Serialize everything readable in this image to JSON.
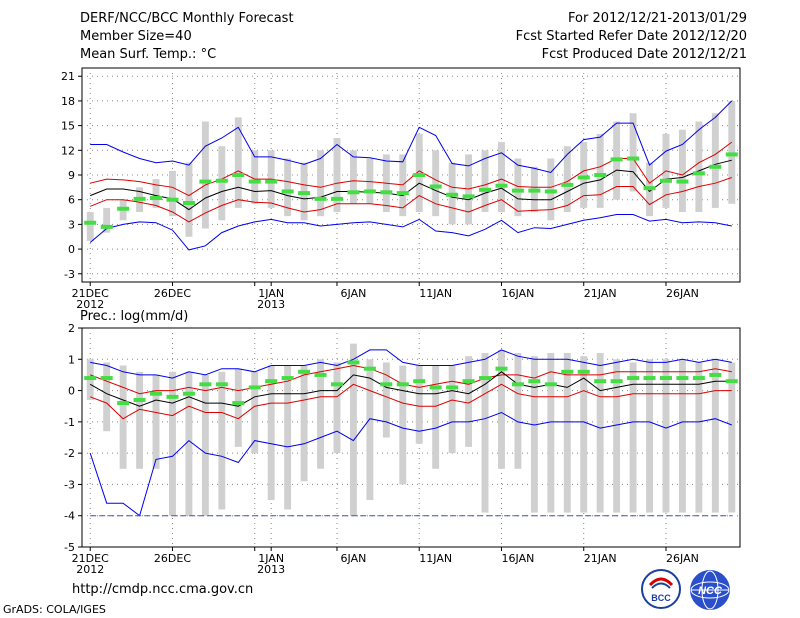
{
  "header": {
    "title": "DERF/NCC/BCC Monthly Forecast",
    "member_size": "Member Size=40",
    "variable": "Mean Surf. Temp.: °C",
    "period": "For 2012/12/21-2013/01/29",
    "started": "Fcst Started Refer Date 2012/12/20",
    "produced": "Fcst Produced Date 2012/12/21"
  },
  "footer": {
    "url": "http://cmdp.ncc.cma.gov.cn",
    "grads": "GrADS: COLA/IGES",
    "logo_bcc": "BCC",
    "logo_ncc": "NCC"
  },
  "colors": {
    "max": "#0000ee",
    "min": "#0000ee",
    "upper": "#dd0000",
    "lower": "#dd0000",
    "mean": "#000000",
    "median": "#44dd44",
    "box": "#d0d0d0"
  },
  "chart_data": [
    {
      "name": "temperature",
      "type": "box-line",
      "title": "Mean Surf. Temp.: °C",
      "ylim": [
        -4,
        22
      ],
      "yticks": [
        -3,
        0,
        3,
        6,
        9,
        12,
        15,
        18,
        21
      ],
      "day_range": [
        -0.5,
        39.5
      ],
      "xtick_days": [
        0,
        5,
        10,
        11,
        15,
        20,
        25,
        30,
        35
      ],
      "xtick_labels": [
        {
          "day": 0,
          "text": "21DEC"
        },
        {
          "day": 0,
          "text": "2012",
          "row": 2
        },
        {
          "day": 5,
          "text": "26DEC"
        },
        {
          "day": 11,
          "text": "1JAN"
        },
        {
          "day": 11,
          "text": "2013",
          "row": 2
        },
        {
          "day": 16,
          "text": "6JAN"
        },
        {
          "day": 21,
          "text": "11JAN"
        },
        {
          "day": 26,
          "text": "16JAN"
        },
        {
          "day": 31,
          "text": "21JAN"
        },
        {
          "day": 36,
          "text": "26JAN"
        }
      ],
      "series": [
        {
          "name": "max",
          "values": [
            12.7,
            12.7,
            11.8,
            11.0,
            10.5,
            10.7,
            10.2,
            12.5,
            13.5,
            14.8,
            11.2,
            11.2,
            10.8,
            10.3,
            11.0,
            12.7,
            11.2,
            11.1,
            10.7,
            10.6,
            14.8,
            13.8,
            10.4,
            10.1,
            11.0,
            11.7,
            10.2,
            9.8,
            9.3,
            11.5,
            13.3,
            13.6,
            15.3,
            15.3,
            10.2,
            11.9,
            12.7,
            14.5,
            16.0,
            18.0
          ]
        },
        {
          "name": "upper",
          "values": [
            8.0,
            8.5,
            8.4,
            8.2,
            7.8,
            7.5,
            6.5,
            7.8,
            8.5,
            9.5,
            8.5,
            8.5,
            8.2,
            7.8,
            7.5,
            8.0,
            8.3,
            8.2,
            8.0,
            7.8,
            9.5,
            8.4,
            7.5,
            7.3,
            7.8,
            8.5,
            7.6,
            7.5,
            7.5,
            8.2,
            9.5,
            10.0,
            11.0,
            11.0,
            8.0,
            9.5,
            9.0,
            10.5,
            11.5,
            13.0
          ]
        },
        {
          "name": "mean",
          "values": [
            6.5,
            7.3,
            7.3,
            7.0,
            6.5,
            6.1,
            4.8,
            6.2,
            7.0,
            7.5,
            7.0,
            7.1,
            6.5,
            6.1,
            6.3,
            7.0,
            7.0,
            6.9,
            6.8,
            6.5,
            8.0,
            7.1,
            6.3,
            6.0,
            6.8,
            7.4,
            6.1,
            6.0,
            6.0,
            7.0,
            8.0,
            8.4,
            9.6,
            9.4,
            7.0,
            8.5,
            8.7,
            9.5,
            10.3,
            10.8
          ]
        },
        {
          "name": "lower",
          "values": [
            5.2,
            6.0,
            6.0,
            5.7,
            5.3,
            4.5,
            3.3,
            4.4,
            5.3,
            6.0,
            5.7,
            5.6,
            5.0,
            4.5,
            4.8,
            5.5,
            5.5,
            5.5,
            5.3,
            5.0,
            6.5,
            5.5,
            5.0,
            4.5,
            5.3,
            6.0,
            4.6,
            4.7,
            4.8,
            5.3,
            6.5,
            6.6,
            7.6,
            7.6,
            5.4,
            6.6,
            7.0,
            7.6,
            8.0,
            8.7
          ]
        },
        {
          "name": "min",
          "values": [
            0.8,
            2.5,
            3.0,
            3.3,
            3.2,
            2.3,
            -0.1,
            0.4,
            2.0,
            2.8,
            3.3,
            3.6,
            3.2,
            3.2,
            2.8,
            3.0,
            3.2,
            3.3,
            3.0,
            2.7,
            3.6,
            2.2,
            2.0,
            1.6,
            2.4,
            3.5,
            2.0,
            2.6,
            2.5,
            3.0,
            3.5,
            3.8,
            4.2,
            4.2,
            3.4,
            3.6,
            3.2,
            3.3,
            3.2,
            2.8
          ]
        }
      ],
      "boxes": [
        [
          1,
          4.5
        ],
        [
          2,
          5
        ],
        [
          3.5,
          6
        ],
        [
          4.5,
          7.5
        ],
        [
          5,
          8.5
        ],
        [
          4,
          9.5
        ],
        [
          1.5,
          10.5
        ],
        [
          2.5,
          15.5
        ],
        [
          3.5,
          12.5
        ],
        [
          5,
          16
        ],
        [
          5.5,
          12
        ],
        [
          5,
          12
        ],
        [
          4,
          11
        ],
        [
          3.5,
          10.5
        ],
        [
          4,
          12
        ],
        [
          4.5,
          13.5
        ],
        [
          5.5,
          12
        ],
        [
          5.5,
          11
        ],
        [
          4.5,
          11.5
        ],
        [
          4,
          11.5
        ],
        [
          4.5,
          14
        ],
        [
          4,
          12
        ],
        [
          3,
          10.5
        ],
        [
          3,
          11.5
        ],
        [
          4.5,
          12
        ],
        [
          4.5,
          13
        ],
        [
          4,
          11
        ],
        [
          4.5,
          10
        ],
        [
          3.5,
          11
        ],
        [
          4.5,
          12.5
        ],
        [
          5,
          13
        ],
        [
          5,
          14
        ],
        [
          6,
          15.5
        ],
        [
          7,
          16.5
        ],
        [
          4,
          10.5
        ],
        [
          5,
          14
        ],
        [
          4.5,
          14.5
        ],
        [
          4.5,
          15.5
        ],
        [
          5,
          16.5
        ],
        [
          5.5,
          18
        ]
      ],
      "median": [
        3.2,
        2.7,
        4.9,
        6.1,
        6.2,
        6.0,
        5.6,
        8.2,
        8.3,
        9.0,
        8.2,
        8.2,
        7.0,
        6.8,
        6.1,
        6.1,
        6.9,
        7.0,
        6.9,
        6.8,
        9.0,
        7.6,
        6.6,
        6.4,
        7.2,
        7.7,
        7.1,
        7.1,
        7.0,
        7.8,
        8.7,
        9.0,
        10.9,
        11.0,
        7.4,
        8.3,
        8.2,
        9.2,
        10.0,
        11.5
      ]
    },
    {
      "name": "precipitation",
      "type": "box-line",
      "title": "Prec.: log(mm/d)",
      "ylim": [
        -5,
        2
      ],
      "yticks": [
        -5,
        -4,
        -3,
        -2,
        -1,
        0,
        1,
        2
      ],
      "day_range": [
        -0.5,
        39.5
      ],
      "xtick_days": [
        0,
        5,
        10,
        11,
        15,
        20,
        25,
        30,
        35
      ],
      "xtick_labels": [
        {
          "day": 0,
          "text": "21DEC"
        },
        {
          "day": 0,
          "text": "2012",
          "row": 2
        },
        {
          "day": 5,
          "text": "26DEC"
        },
        {
          "day": 11,
          "text": "1JAN"
        },
        {
          "day": 11,
          "text": "2013",
          "row": 2
        },
        {
          "day": 16,
          "text": "6JAN"
        },
        {
          "day": 21,
          "text": "11JAN"
        },
        {
          "day": 26,
          "text": "16JAN"
        },
        {
          "day": 31,
          "text": "21JAN"
        },
        {
          "day": 36,
          "text": "26JAN"
        }
      ],
      "baseline": -4,
      "series": [
        {
          "name": "max",
          "values": [
            0.9,
            0.8,
            0.6,
            0.5,
            0.5,
            0.4,
            0.6,
            0.5,
            0.7,
            0.7,
            0.6,
            0.8,
            0.8,
            0.8,
            0.9,
            0.8,
            1.0,
            1.3,
            1.3,
            0.9,
            0.8,
            0.8,
            0.8,
            0.9,
            1.0,
            1.3,
            1.1,
            1.0,
            1.0,
            1.0,
            0.9,
            0.8,
            0.9,
            1.0,
            0.9,
            0.9,
            1.0,
            0.9,
            1.0,
            0.9
          ]
        },
        {
          "name": "upper",
          "values": [
            0.5,
            0.3,
            0.1,
            -0.1,
            0.0,
            0.0,
            0.1,
            0.0,
            0.1,
            0.0,
            0.1,
            0.2,
            0.3,
            0.5,
            0.6,
            0.7,
            0.8,
            0.7,
            0.5,
            0.2,
            0.1,
            0.2,
            0.3,
            0.2,
            0.4,
            0.5,
            0.5,
            0.4,
            0.6,
            0.5,
            0.5,
            0.5,
            0.6,
            0.6,
            0.6,
            0.6,
            0.6,
            0.6,
            0.7,
            0.6
          ]
        },
        {
          "name": "mean",
          "values": [
            0.2,
            -0.1,
            -0.3,
            -0.5,
            -0.3,
            -0.4,
            -0.2,
            -0.4,
            -0.4,
            -0.5,
            -0.2,
            -0.1,
            -0.1,
            -0.1,
            0.0,
            0.0,
            0.5,
            0.4,
            0.1,
            0.0,
            -0.1,
            -0.1,
            0.0,
            -0.1,
            0.2,
            0.6,
            0.2,
            0.1,
            0.2,
            0.1,
            0.4,
            0.0,
            0.1,
            0.2,
            0.2,
            0.2,
            0.2,
            0.2,
            0.3,
            0.3
          ]
        },
        {
          "name": "lower",
          "values": [
            -0.2,
            -0.4,
            -0.9,
            -0.6,
            -0.7,
            -0.8,
            -0.5,
            -0.7,
            -0.7,
            -0.9,
            -0.5,
            -0.4,
            -0.4,
            -0.3,
            -0.2,
            -0.2,
            0.2,
            0.0,
            -0.2,
            -0.4,
            -0.5,
            -0.5,
            -0.3,
            -0.4,
            -0.1,
            0.2,
            -0.1,
            -0.2,
            -0.2,
            -0.2,
            0.0,
            -0.2,
            -0.2,
            -0.1,
            -0.1,
            -0.1,
            -0.1,
            -0.1,
            0.0,
            0.0
          ]
        },
        {
          "name": "min",
          "values": [
            -2.0,
            -3.6,
            -3.6,
            -4.0,
            -2.2,
            -2.1,
            -1.6,
            -2.0,
            -2.1,
            -2.3,
            -1.6,
            -1.7,
            -1.8,
            -1.7,
            -1.5,
            -1.3,
            -1.6,
            -0.9,
            -1.0,
            -1.2,
            -1.3,
            -1.2,
            -1.0,
            -1.0,
            -0.9,
            -0.7,
            -1.0,
            -1.1,
            -1.0,
            -1.0,
            -1.0,
            -1.2,
            -1.1,
            -1.0,
            -1.0,
            -1.2,
            -1.0,
            -1.0,
            -0.9,
            -1.1
          ]
        },
        {
          "name": "floor",
          "values": [
            -4,
            -4,
            -4,
            -4,
            -4,
            -4,
            -4,
            -4,
            -4,
            -4,
            -4,
            -4,
            -4,
            -4,
            -4,
            -4,
            -4,
            -4,
            -4,
            -4,
            -4,
            -4,
            -4,
            -4,
            -4,
            -4,
            -4,
            -4,
            -4,
            -4,
            -4,
            -4,
            -4,
            -4,
            -4,
            -4,
            -4,
            -4,
            -4,
            -4
          ]
        }
      ],
      "boxes": [
        [
          -0.3,
          1.0
        ],
        [
          -1.3,
          0.9
        ],
        [
          -2.5,
          0.8
        ],
        [
          -2.5,
          0.6
        ],
        [
          -2.5,
          0.5
        ],
        [
          -4.0,
          0.6
        ],
        [
          -4.0,
          0.6
        ],
        [
          -4.0,
          0.5
        ],
        [
          -3.8,
          0.6
        ],
        [
          -1.8,
          0.7
        ],
        [
          -2.0,
          0.6
        ],
        [
          -3.5,
          0.8
        ],
        [
          -3.8,
          0.8
        ],
        [
          -2.9,
          0.8
        ],
        [
          -2.5,
          1.0
        ],
        [
          -2.0,
          0.9
        ],
        [
          -4.0,
          1.5
        ],
        [
          -3.5,
          1.0
        ],
        [
          -1.5,
          0.9
        ],
        [
          -3.0,
          0.8
        ],
        [
          -1.7,
          0.8
        ],
        [
          -2.5,
          0.8
        ],
        [
          -2.0,
          0.8
        ],
        [
          -1.8,
          1.1
        ],
        [
          -3.9,
          1.2
        ],
        [
          -2.5,
          1.3
        ],
        [
          -2.5,
          1.2
        ],
        [
          -3.9,
          1.1
        ],
        [
          -3.9,
          1.2
        ],
        [
          -3.9,
          1.2
        ],
        [
          -3.9,
          1.1
        ],
        [
          -3.9,
          1.2
        ],
        [
          -3.9,
          1.0
        ],
        [
          -3.9,
          0.9
        ],
        [
          -3.9,
          1.0
        ],
        [
          -3.9,
          1.0
        ],
        [
          -3.9,
          1.0
        ],
        [
          -3.9,
          0.9
        ],
        [
          -3.9,
          1.0
        ],
        [
          -3.9,
          0.9
        ]
      ],
      "median": [
        0.4,
        0.4,
        -0.4,
        -0.3,
        -0.1,
        -0.2,
        -0.1,
        0.2,
        0.2,
        -0.4,
        0.1,
        0.3,
        0.4,
        0.6,
        0.5,
        0.2,
        0.9,
        0.7,
        0.2,
        0.2,
        0.3,
        0.1,
        0.1,
        0.3,
        0.4,
        0.7,
        0.2,
        0.3,
        0.2,
        0.6,
        0.6,
        0.3,
        0.3,
        0.4,
        0.4,
        0.4,
        0.4,
        0.4,
        0.5,
        0.3
      ]
    }
  ]
}
